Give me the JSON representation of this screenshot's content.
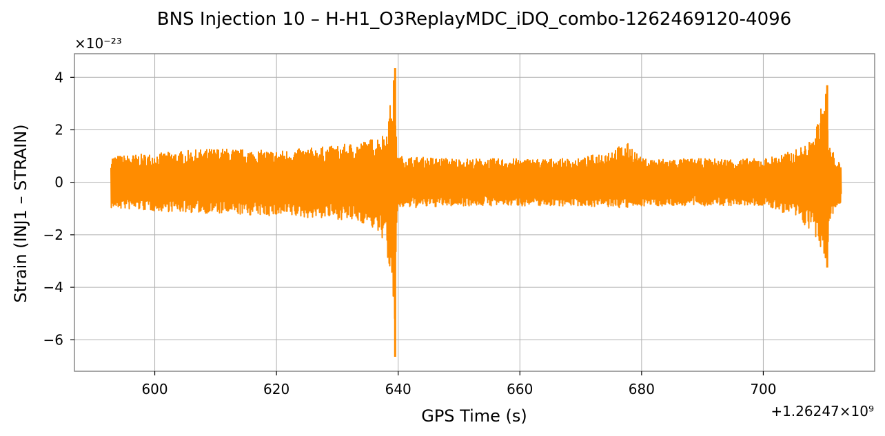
{
  "chart_data": {
    "type": "line",
    "title": "BNS Injection 10 – H-H1_O3ReplayMDC_iDQ_combo-1262469120-4096",
    "xlabel": "GPS Time (s)",
    "ylabel": "Strain (INJ1 – STRAIN)",
    "x_offset_label": "+1.26247×10⁹",
    "y_scale_label": "×10⁻²³",
    "xlim": [
      586.8,
      718.3
    ],
    "ylim": [
      -7.2,
      4.9
    ],
    "xticks": [
      600,
      620,
      640,
      660,
      680,
      700
    ],
    "xtick_labels": [
      "600",
      "620",
      "640",
      "660",
      "680",
      "700"
    ],
    "yticks": [
      4,
      2,
      0,
      -2,
      -4,
      -6
    ],
    "ytick_labels": [
      "4",
      "2",
      "0",
      "−2",
      "−4",
      "−6"
    ],
    "grid": true,
    "color": "#ff8c00",
    "series": [
      {
        "x": [
          592.8,
          600,
          610,
          620,
          630,
          635,
          638,
          639.5,
          639.6,
          640,
          650,
          660,
          670,
          678,
          680,
          690,
          700,
          705,
          708,
          710.5,
          710.7,
          712.8
        ],
        "upper": [
          1.0,
          1.1,
          1.3,
          1.2,
          1.4,
          1.6,
          1.9,
          4.35,
          2.0,
          1.0,
          0.9,
          0.9,
          0.9,
          1.5,
          0.9,
          0.9,
          0.9,
          1.2,
          1.6,
          3.7,
          1.5,
          0.6
        ],
        "lower": [
          -1.0,
          -1.1,
          -1.2,
          -1.3,
          -1.4,
          -1.6,
          -2.3,
          -6.65,
          -2.0,
          -1.0,
          -0.9,
          -0.9,
          -0.9,
          -1.0,
          -0.9,
          -0.9,
          -0.9,
          -1.3,
          -1.9,
          -3.25,
          -1.5,
          -0.7
        ]
      }
    ]
  }
}
